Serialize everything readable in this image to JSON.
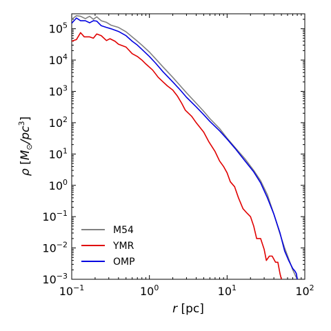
{
  "chart_data": {
    "type": "line",
    "xscale": "log",
    "yscale": "log",
    "xlim": [
      0.1,
      100
    ],
    "ylim": [
      0.001,
      300000
    ],
    "xlabel": {
      "main": "r",
      "unit": "[pc]"
    },
    "ylabel": {
      "rho": "ρ",
      "open": "[",
      "msun": "M",
      "sun": "⊙",
      "per": "/pc",
      "exp": "3",
      "close": "]"
    },
    "xticks": [
      {
        "value": 0.1,
        "base": "10",
        "exp": "−1"
      },
      {
        "value": 1,
        "base": "10",
        "exp": "0"
      },
      {
        "value": 10,
        "base": "10",
        "exp": "1"
      },
      {
        "value": 100,
        "base": "10",
        "exp": "2"
      }
    ],
    "yticks": [
      {
        "value": 0.001,
        "base": "10",
        "exp": "−3"
      },
      {
        "value": 0.01,
        "base": "10",
        "exp": "−2"
      },
      {
        "value": 0.1,
        "base": "10",
        "exp": "−1"
      },
      {
        "value": 1,
        "base": "10",
        "exp": "0"
      },
      {
        "value": 10,
        "base": "10",
        "exp": "1"
      },
      {
        "value": 100,
        "base": "10",
        "exp": "2"
      },
      {
        "value": 1000,
        "base": "10",
        "exp": "3"
      },
      {
        "value": 10000,
        "base": "10",
        "exp": "4"
      },
      {
        "value": 100000,
        "base": "10",
        "exp": "5"
      }
    ],
    "legend_position": "lower-left",
    "series": [
      {
        "name": "M54",
        "color": "#808080",
        "points": [
          [
            0.1,
            200000
          ],
          [
            0.115,
            260000
          ],
          [
            0.13,
            250000
          ],
          [
            0.15,
            210000
          ],
          [
            0.17,
            250000
          ],
          [
            0.19,
            200000
          ],
          [
            0.21,
            240000
          ],
          [
            0.24,
            180000
          ],
          [
            0.28,
            160000
          ],
          [
            0.32,
            130000
          ],
          [
            0.4,
            110000
          ],
          [
            0.5,
            80000
          ],
          [
            0.6,
            55000
          ],
          [
            0.7,
            40000
          ],
          [
            0.8,
            30000
          ],
          [
            1.0,
            18000
          ],
          [
            1.2,
            11000
          ],
          [
            1.5,
            6000
          ],
          [
            2.0,
            2800
          ],
          [
            2.5,
            1500
          ],
          [
            3.0,
            900
          ],
          [
            4.0,
            420
          ],
          [
            5.0,
            230
          ],
          [
            6.0,
            135
          ],
          [
            8.0,
            65
          ],
          [
            10.0,
            32
          ],
          [
            13.0,
            15
          ],
          [
            17.0,
            7
          ],
          [
            22.0,
            3
          ],
          [
            27.0,
            1.4
          ],
          [
            33.0,
            0.5
          ],
          [
            40.0,
            0.12
          ],
          [
            48.0,
            0.028
          ],
          [
            55.0,
            0.01
          ],
          [
            62.0,
            0.0045
          ],
          [
            70.0,
            0.002
          ],
          [
            77.0,
            0.0012
          ],
          [
            80.0,
            0.001
          ]
        ]
      },
      {
        "name": "YMR",
        "color": "#e00000",
        "points": [
          [
            0.1,
            40000
          ],
          [
            0.115,
            45000
          ],
          [
            0.13,
            75000
          ],
          [
            0.145,
            55000
          ],
          [
            0.17,
            55000
          ],
          [
            0.19,
            50000
          ],
          [
            0.21,
            68000
          ],
          [
            0.24,
            60000
          ],
          [
            0.28,
            42000
          ],
          [
            0.31,
            48000
          ],
          [
            0.36,
            40000
          ],
          [
            0.4,
            32000
          ],
          [
            0.5,
            26000
          ],
          [
            0.6,
            16000
          ],
          [
            0.7,
            13000
          ],
          [
            0.8,
            10000
          ],
          [
            0.9,
            7500
          ],
          [
            1.1,
            4800
          ],
          [
            1.3,
            2800
          ],
          [
            1.5,
            2000
          ],
          [
            1.7,
            1500
          ],
          [
            2.0,
            1100
          ],
          [
            2.3,
            700
          ],
          [
            2.6,
            420
          ],
          [
            2.9,
            250
          ],
          [
            3.5,
            160
          ],
          [
            4.0,
            100
          ],
          [
            5.0,
            50
          ],
          [
            5.8,
            25
          ],
          [
            7.0,
            12
          ],
          [
            8.0,
            6
          ],
          [
            9.0,
            4
          ],
          [
            10.0,
            2.5
          ],
          [
            11.0,
            1.3
          ],
          [
            12.5,
            0.9
          ],
          [
            14.0,
            0.4
          ],
          [
            16.0,
            0.18
          ],
          [
            18.0,
            0.13
          ],
          [
            20.0,
            0.1
          ],
          [
            22.0,
            0.05
          ],
          [
            24.0,
            0.02
          ],
          [
            27.0,
            0.02
          ],
          [
            30.0,
            0.009
          ],
          [
            32.0,
            0.004
          ],
          [
            35.0,
            0.0055
          ],
          [
            38.0,
            0.0055
          ],
          [
            42.0,
            0.0035
          ],
          [
            45.0,
            0.0035
          ],
          [
            48.0,
            0.0015
          ],
          [
            50.0,
            0.001
          ]
        ]
      },
      {
        "name": "OMP",
        "color": "#0000e0",
        "points": [
          [
            0.1,
            150000
          ],
          [
            0.115,
            220000
          ],
          [
            0.13,
            180000
          ],
          [
            0.15,
            180000
          ],
          [
            0.17,
            155000
          ],
          [
            0.19,
            180000
          ],
          [
            0.21,
            175000
          ],
          [
            0.24,
            125000
          ],
          [
            0.28,
            110000
          ],
          [
            0.32,
            100000
          ],
          [
            0.4,
            82000
          ],
          [
            0.5,
            60000
          ],
          [
            0.6,
            40000
          ],
          [
            0.7,
            30000
          ],
          [
            0.8,
            22000
          ],
          [
            1.0,
            13000
          ],
          [
            1.2,
            8000
          ],
          [
            1.5,
            4200
          ],
          [
            2.0,
            2000
          ],
          [
            2.5,
            1100
          ],
          [
            3.0,
            650
          ],
          [
            4.0,
            320
          ],
          [
            5.0,
            180
          ],
          [
            6.0,
            110
          ],
          [
            8.0,
            55
          ],
          [
            10.0,
            30
          ],
          [
            13.0,
            14
          ],
          [
            17.0,
            6
          ],
          [
            22.0,
            2.7
          ],
          [
            27.0,
            1.2
          ],
          [
            33.0,
            0.4
          ],
          [
            40.0,
            0.12
          ],
          [
            48.0,
            0.03
          ],
          [
            55.0,
            0.008
          ],
          [
            62.0,
            0.004
          ],
          [
            70.0,
            0.0022
          ],
          [
            75.0,
            0.0018
          ],
          [
            78.0,
            0.0015
          ],
          [
            80.0,
            0.001
          ]
        ]
      }
    ]
  }
}
